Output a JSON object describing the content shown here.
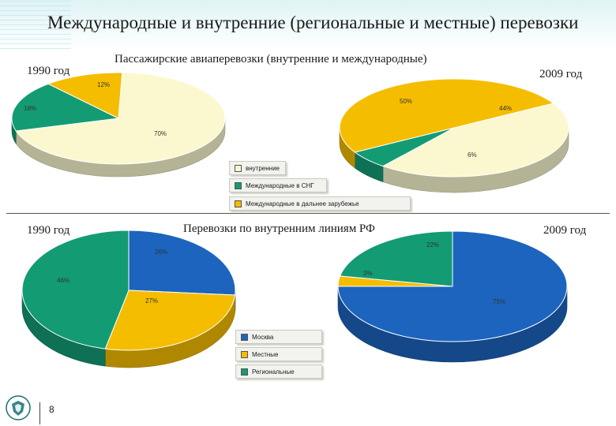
{
  "page": {
    "title": "Международные и внутренние (региональные и местные) перевозки",
    "page_number": "8"
  },
  "colors": {
    "yellow": "#f5bd00",
    "cream": "#fbf8cf",
    "green": "#139b74",
    "blue": "#1c64be"
  },
  "chart_data": [
    {
      "type": "pie",
      "title": "Пассажирские авиаперевозки (внутренние и международные)",
      "legend": [
        "внутренние",
        "Международные в СНГ",
        "Международные в дальнее зарубежье"
      ],
      "legend_colors": [
        "#fbf8cf",
        "#139b74",
        "#f5bd00"
      ],
      "pies": [
        {
          "year": "1990 год",
          "slices": [
            {
              "name": "внутренние",
              "value": 70,
              "label": "70%",
              "color": "#fbf8cf"
            },
            {
              "name": "Международные в СНГ",
              "value": 18,
              "label": "18%",
              "color": "#139b74"
            },
            {
              "name": "Международные в дальнее зарубежье",
              "value": 12,
              "label": "12%",
              "color": "#f5bd00"
            }
          ]
        },
        {
          "year": "2009 год",
          "slices": [
            {
              "name": "внутренние",
              "value": 44,
              "label": "44%",
              "color": "#fbf8cf"
            },
            {
              "name": "Международные в СНГ",
              "value": 6,
              "label": "6%",
              "color": "#139b74"
            },
            {
              "name": "Международные в дальнее зарубежье",
              "value": 50,
              "label": "50%",
              "color": "#f5bd00"
            }
          ]
        }
      ]
    },
    {
      "type": "pie",
      "title": "Перевозки по внутренним линиям РФ",
      "legend": [
        "Москва",
        "Местные",
        "Региональные"
      ],
      "legend_colors": [
        "#1c64be",
        "#f5bd00",
        "#139b74"
      ],
      "pies": [
        {
          "year": "1990 год",
          "slices": [
            {
              "name": "Москва",
              "value": 26,
              "label": "26%",
              "color": "#1c64be"
            },
            {
              "name": "Местные",
              "value": 27,
              "label": "27%",
              "color": "#f5bd00"
            },
            {
              "name": "Региональные",
              "value": 46,
              "label": "46%",
              "color": "#139b74"
            }
          ]
        },
        {
          "year": "2009 год",
          "slices": [
            {
              "name": "Москва",
              "value": 75,
              "label": "75%",
              "color": "#1c64be"
            },
            {
              "name": "Местные",
              "value": 3,
              "label": "3%",
              "color": "#f5bd00"
            },
            {
              "name": "Региональные",
              "value": 22,
              "label": "22%",
              "color": "#139b74"
            }
          ]
        }
      ]
    }
  ]
}
